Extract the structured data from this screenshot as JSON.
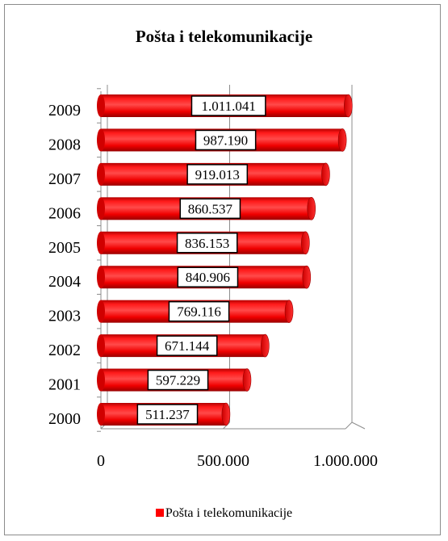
{
  "chart_data": {
    "type": "bar",
    "orientation": "horizontal",
    "title": "Pošta i telekomunikacije",
    "categories": [
      "2000",
      "2001",
      "2002",
      "2003",
      "2004",
      "2005",
      "2006",
      "2007",
      "2008",
      "2009"
    ],
    "series": [
      {
        "name": "Pošta i telekomunikacije",
        "values": [
          511237,
          597229,
          671144,
          769116,
          840906,
          836153,
          860537,
          919013,
          987190,
          1011041
        ],
        "labels": [
          "511.237",
          "597.229",
          "671.144",
          "769.116",
          "840.906",
          "836.153",
          "860.537",
          "919.013",
          "987.190",
          "1.011.041"
        ],
        "color": "#ff0000"
      }
    ],
    "x_ticks": [
      {
        "value": 0,
        "label": "0"
      },
      {
        "value": 500000,
        "label": "500.000"
      },
      {
        "value": 1000000,
        "label": "1.000.000"
      }
    ],
    "xlim": [
      0,
      1000000
    ],
    "grid": true,
    "legend_position": "bottom"
  }
}
